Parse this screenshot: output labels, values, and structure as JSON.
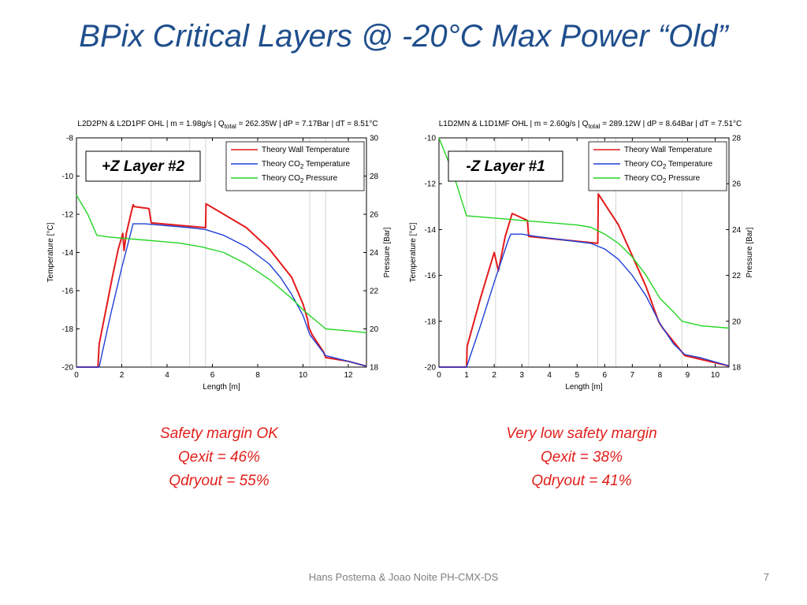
{
  "slide": {
    "title": "BPix Critical Layers @ -20°C Max Power “Old”",
    "footer": "Hans Postema & Joao Noite  PH-CMX-DS",
    "page": "7"
  },
  "callouts": [
    {
      "l1": "Safety margin OK",
      "l2": "Qexit = 46%",
      "l3": "Qdryout = 55%"
    },
    {
      "l1": "Very low safety margin",
      "l2": "Qexit = 38%",
      "l3": "Qdryout = 41%"
    }
  ],
  "colors": {
    "title": "#1f4e8c",
    "wall": "#e41a1c",
    "co2": "#1f3fd6",
    "pressure": "#23d523",
    "callout": "#e0201b"
  },
  "chart_data": [
    {
      "type": "line",
      "title": "L2D2PN & L2D1PF OHL | m = 1.98g/s | Q",
      "title_sub": "total",
      "title_rest": " = 262.35W | dP = 7.17Bar | dT = 8.51°C",
      "xlabel": "Length [m]",
      "ylabel": "Temperature [°C]",
      "ylabel_right": "Pressure [Bar]",
      "badge": "+Z Layer #2",
      "xlim": [
        0,
        12.8
      ],
      "ylim": [
        -20,
        -8
      ],
      "y2lim": [
        18,
        30
      ],
      "xticks": [
        0,
        2,
        4,
        6,
        8,
        10,
        12
      ],
      "yticks": [
        -20,
        -18,
        -16,
        -14,
        -12,
        -10,
        -8
      ],
      "y2ticks": [
        18,
        20,
        22,
        24,
        26,
        28,
        30
      ],
      "grid_x": [
        2,
        3.3,
        5,
        5.7,
        10.3,
        11
      ],
      "legend": [
        "Theory Wall Temperature",
        "Theory CO2 Temperature",
        "Theory CO2 Pressure"
      ],
      "series": [
        {
          "name": "Theory Wall Temperature",
          "axis": "left",
          "x": [
            0,
            0.95,
            1,
            1.3,
            1.6,
            1.85,
            2.05,
            2.1,
            2.2,
            2.4,
            2.5,
            2.55,
            3.2,
            3.3,
            5.7,
            5.72,
            6.5,
            7.5,
            8.5,
            9.5,
            10.0,
            10.2,
            10.25,
            10.4,
            10.9,
            11.0,
            12.0,
            12.8
          ],
          "y": [
            -20,
            -20,
            -18.8,
            -17,
            -15.2,
            -13.8,
            -13.0,
            -13.9,
            -13.0,
            -12.0,
            -11.5,
            -11.6,
            -11.7,
            -12.45,
            -12.7,
            -11.45,
            -12.0,
            -12.7,
            -13.8,
            -15.3,
            -16.7,
            -17.5,
            -17.9,
            -18.3,
            -19.2,
            -19.5,
            -19.7,
            -19.95
          ]
        },
        {
          "name": "Theory CO2 Temperature",
          "axis": "left",
          "x": [
            0,
            1.0,
            1.5,
            2.0,
            2.5,
            3.0,
            4.0,
            5.0,
            5.7,
            6.5,
            7.5,
            8.5,
            9.0,
            9.5,
            10.0,
            10.3,
            11.0,
            12.0,
            12.8
          ],
          "y": [
            -20,
            -20,
            -17.3,
            -14.8,
            -12.5,
            -12.5,
            -12.6,
            -12.7,
            -12.8,
            -13.1,
            -13.7,
            -14.6,
            -15.3,
            -16.2,
            -17.3,
            -18.3,
            -19.4,
            -19.7,
            -19.95
          ]
        },
        {
          "name": "Theory CO2 Pressure",
          "axis": "right",
          "x": [
            0,
            0.5,
            0.9,
            1.5,
            2.5,
            3.5,
            4.5,
            5.5,
            6.5,
            7.5,
            8.5,
            9.5,
            10.0,
            10.5,
            11.0,
            12.0,
            12.8
          ],
          "y": [
            27.0,
            26.0,
            24.9,
            24.8,
            24.7,
            24.6,
            24.5,
            24.3,
            24.0,
            23.4,
            22.6,
            21.6,
            21.0,
            20.5,
            20.0,
            19.9,
            19.8
          ]
        }
      ]
    },
    {
      "type": "line",
      "title": "L1D2MN & L1D1MF OHL | m = 2.60g/s | Q",
      "title_sub": "total",
      "title_rest": " = 289.12W | dP = 8.64Bar | dT = 7.51°C",
      "xlabel": "Length [m]",
      "ylabel": "Temperature [°C]",
      "ylabel_right": "Pressure [Bar]",
      "badge": "-Z Layer #1",
      "xlim": [
        0,
        10.5
      ],
      "ylim": [
        -20,
        -10
      ],
      "y2lim": [
        18,
        28
      ],
      "xticks": [
        0,
        1,
        2,
        3,
        4,
        5,
        6,
        7,
        8,
        9,
        10
      ],
      "yticks": [
        -20,
        -18,
        -16,
        -14,
        -12,
        -10
      ],
      "y2ticks": [
        18,
        20,
        22,
        24,
        26,
        28
      ],
      "grid_x": [
        1,
        2.05,
        3.25,
        5.75,
        6.4,
        8.8
      ],
      "legend": [
        "Theory Wall Temperature",
        "Theory CO2 Temperature",
        "Theory CO2 Pressure"
      ],
      "series": [
        {
          "name": "Theory Wall Temperature",
          "axis": "left",
          "x": [
            0,
            0.75,
            1.0,
            1.02,
            1.5,
            2.0,
            2.15,
            2.4,
            2.65,
            3.2,
            3.25,
            5.75,
            5.77,
            6.5,
            7.5,
            7.95,
            8.1,
            8.9,
            10.5
          ],
          "y": [
            -20,
            -20,
            -20,
            -19.1,
            -17.0,
            -15.0,
            -15.8,
            -14.3,
            -13.3,
            -13.6,
            -14.3,
            -14.6,
            -12.45,
            -13.8,
            -16.5,
            -18.0,
            -18.3,
            -19.5,
            -19.95
          ]
        },
        {
          "name": "Theory CO2 Temperature",
          "axis": "left",
          "x": [
            0,
            1.0,
            1.5,
            2.0,
            2.5,
            2.6,
            3.0,
            3.5,
            4.5,
            5.5,
            6.0,
            6.5,
            7.0,
            7.5,
            8.0,
            8.5,
            8.9,
            9.5,
            10.5
          ],
          "y": [
            -20,
            -20,
            -18.2,
            -16.3,
            -14.5,
            -14.2,
            -14.2,
            -14.3,
            -14.45,
            -14.6,
            -14.85,
            -15.3,
            -16.0,
            -16.9,
            -18.1,
            -19.0,
            -19.45,
            -19.6,
            -19.95
          ]
        },
        {
          "name": "Theory CO2 Pressure",
          "axis": "right",
          "x": [
            0,
            0.5,
            1.0,
            2.0,
            3.0,
            4.0,
            5.0,
            5.5,
            6.0,
            6.5,
            7.0,
            7.5,
            8.0,
            8.5,
            8.8,
            9.5,
            10.5
          ],
          "y": [
            28.0,
            26.5,
            24.6,
            24.5,
            24.4,
            24.3,
            24.2,
            24.1,
            23.8,
            23.4,
            22.8,
            22.0,
            21.0,
            20.4,
            20.0,
            19.8,
            19.7
          ]
        }
      ]
    }
  ]
}
